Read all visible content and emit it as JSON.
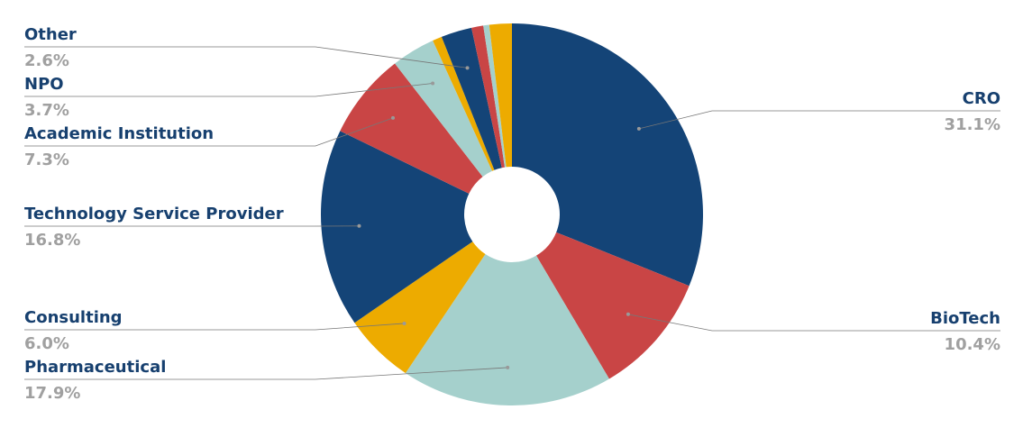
{
  "chart_data": {
    "type": "donut",
    "categories": [
      "CRO",
      "BioTech",
      "Pharmaceutical",
      "Consulting",
      "Technology Service Provider",
      "Academic Institution",
      "NPO",
      null,
      "Other",
      null,
      null,
      null
    ],
    "values": [
      31.1,
      10.4,
      17.9,
      6.0,
      16.8,
      7.3,
      3.7,
      0.8,
      2.6,
      1.0,
      0.5,
      1.9
    ],
    "value_labels": [
      "31.1%",
      "10.4%",
      "17.9%",
      "6.0%",
      "16.8%",
      "7.3%",
      "3.7%",
      null,
      "2.6%",
      null,
      null,
      null
    ],
    "colors": [
      "#144477",
      "#c94545",
      "#a5d0cc",
      "#edab00",
      "#144477",
      "#c94545",
      "#a5d0cc",
      "#edab00",
      "#144477",
      "#c94545",
      "#a5d0cc",
      "#edab00"
    ]
  }
}
